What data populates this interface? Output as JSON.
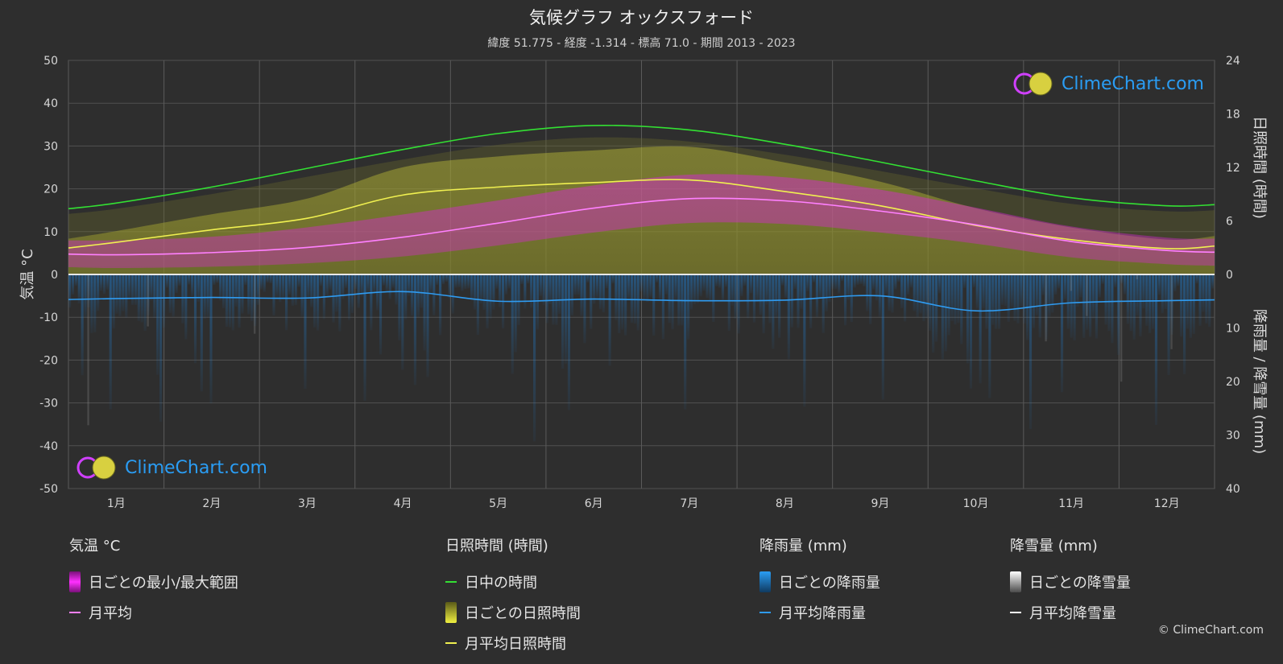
{
  "title": "気候グラフ オックスフォード",
  "subtitle": "緯度 51.775 - 経度 -1.314 - 標高 71.0 - 期間 2013 - 2023",
  "copyright": "© ClimeChart.com",
  "logo_text": "ClimeChart.com",
  "legend": {
    "temperature": {
      "heading": "気温 °C",
      "range_label": "日ごとの最小/最大範囲",
      "avg_label": "月平均"
    },
    "sunshine": {
      "heading": "日照時間 (時間)",
      "daylight_label": "日中の時間",
      "daily_label": "日ごとの日照時間",
      "avg_label": "月平均日照時間"
    },
    "rain": {
      "heading": "降雨量 (mm)",
      "daily_label": "日ごとの降雨量",
      "avg_label": "月平均降雨量"
    },
    "snow": {
      "heading": "降雪量 (mm)",
      "daily_label": "日ごとの降雪量",
      "avg_label": "月平均降雪量"
    }
  },
  "colors": {
    "background": "#2e2e2e",
    "grid": "#555555",
    "temp_range": "#e020e0",
    "temp_avg": "#ff80ff",
    "daylight": "#33e033",
    "sunshine": "#c8c83a",
    "sunshine_avg": "#f0f050",
    "rain": "#1e88e5",
    "rain_avg": "#2f9bf0",
    "snow": "#ffffff"
  },
  "chart_data": {
    "type": "area",
    "categories": [
      "1月",
      "2月",
      "3月",
      "4月",
      "5月",
      "6月",
      "7月",
      "8月",
      "9月",
      "10月",
      "11月",
      "12月"
    ],
    "y_left": {
      "label": "気温 °C",
      "ylim": [
        -50,
        50
      ],
      "ticks": [
        50,
        40,
        30,
        20,
        10,
        0,
        -10,
        -20,
        -30,
        -40,
        -50
      ]
    },
    "y_right_top": {
      "label": "日照時間 (時間)",
      "ylim": [
        0,
        24
      ],
      "ticks": [
        24,
        18,
        12,
        6,
        0
      ]
    },
    "y_right_bottom": {
      "label": "降雨量 / 降雪量 (mm)",
      "ylim": [
        0,
        40
      ],
      "ticks": [
        0,
        10,
        20,
        30,
        40
      ]
    },
    "grid": true,
    "series": [
      {
        "name": "日中の時間",
        "axis": "hours",
        "values": [
          8.0,
          9.8,
          11.9,
          14.0,
          15.8,
          16.7,
          16.2,
          14.6,
          12.6,
          10.5,
          8.6,
          7.7
        ]
      },
      {
        "name": "月平均日照時間",
        "axis": "hours",
        "values": [
          3.6,
          5.0,
          6.3,
          8.9,
          9.8,
          10.3,
          10.6,
          9.3,
          7.7,
          5.5,
          3.9,
          2.9
        ]
      },
      {
        "name": "月平均",
        "axis": "temperature",
        "values": [
          4.6,
          5.1,
          6.3,
          8.7,
          12.0,
          15.5,
          17.7,
          17.2,
          14.8,
          11.6,
          7.7,
          5.6
        ]
      },
      {
        "name": "月平均降雨量",
        "axis": "precipitation",
        "values": [
          4.5,
          4.3,
          4.4,
          3.2,
          5.0,
          4.6,
          4.9,
          4.8,
          4.0,
          6.8,
          5.3,
          4.9
        ]
      },
      {
        "name": "月平均降雪量",
        "axis": "precipitation",
        "values": [
          0,
          0,
          0,
          0,
          0,
          0,
          0,
          0,
          0,
          0,
          0,
          0
        ]
      }
    ],
    "daily_temp_range": {
      "min": [
        1.5,
        1.8,
        2.6,
        4.2,
        6.8,
        9.8,
        12.0,
        11.8,
        9.8,
        7.2,
        4.0,
        2.4
      ],
      "max": [
        8.0,
        8.8,
        11.0,
        14.0,
        17.3,
        20.8,
        23.3,
        22.7,
        19.8,
        15.6,
        11.2,
        8.6
      ]
    }
  }
}
